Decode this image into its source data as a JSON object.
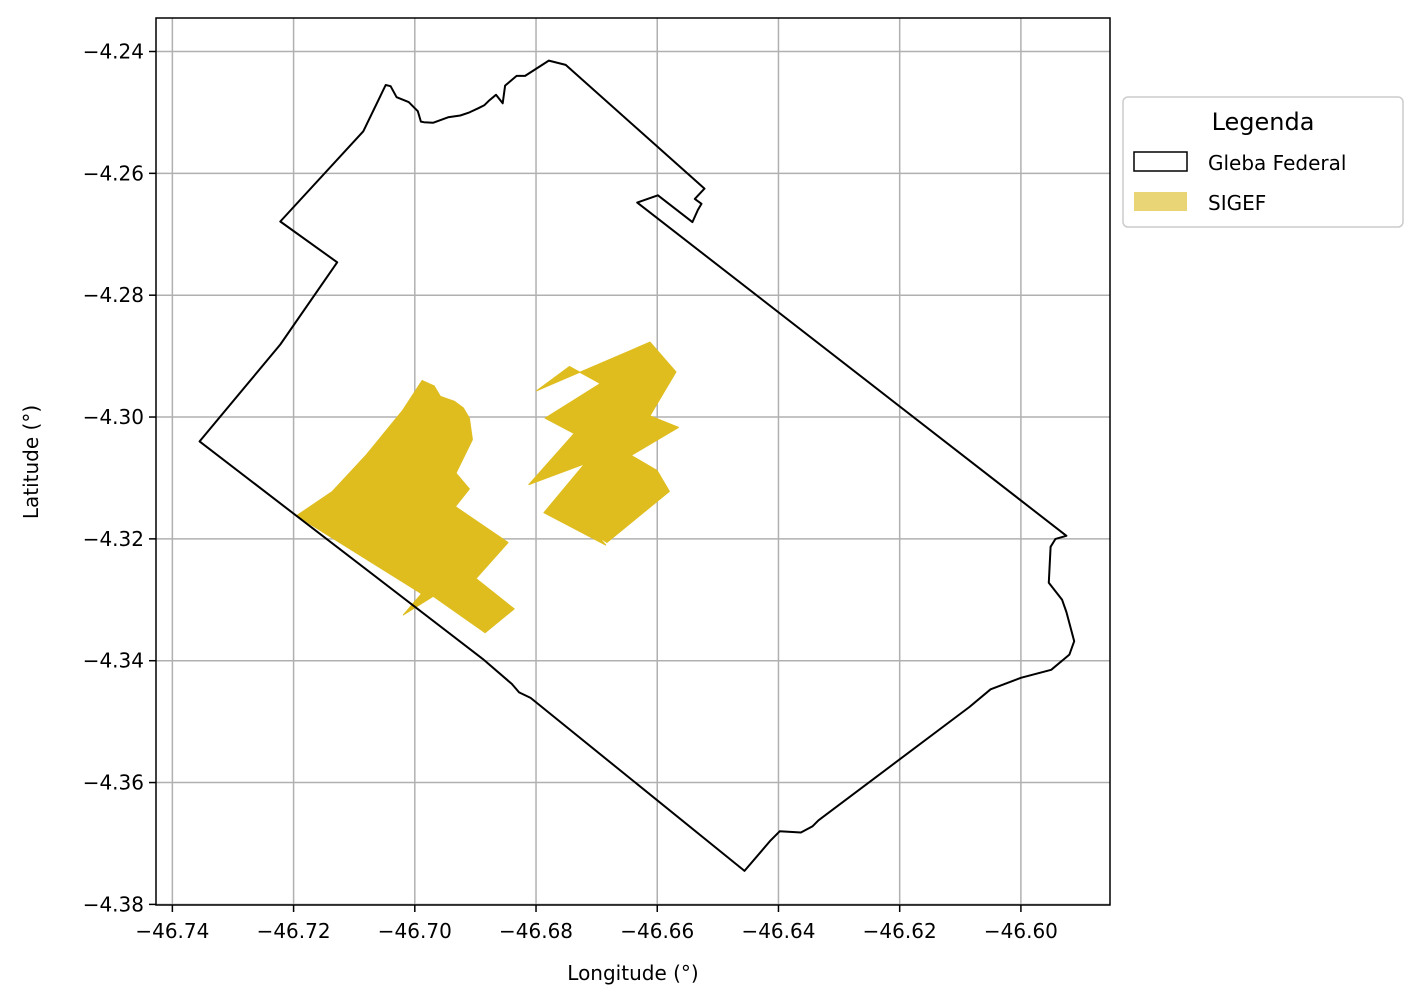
{
  "chart_data": {
    "type": "map",
    "xlabel": "Longitude (°)",
    "ylabel": "Latitude (°)",
    "xlim": [
      -46.7427,
      -46.5853
    ],
    "ylim": [
      -4.3801,
      -4.2345
    ],
    "xticks": [
      -46.74,
      -46.72,
      -46.7,
      -46.68,
      -46.66,
      -46.64,
      -46.62,
      -46.6
    ],
    "yticks": [
      -4.24,
      -4.26,
      -4.28,
      -4.3,
      -4.32,
      -4.34,
      -4.36,
      -4.38
    ],
    "xtick_labels": [
      "−46.74",
      "−46.72",
      "−46.70",
      "−46.68",
      "−46.66",
      "−46.64",
      "−46.62",
      "−46.60"
    ],
    "ytick_labels": [
      "−4.24",
      "−4.26",
      "−4.28",
      "−4.30",
      "−4.32",
      "−4.34",
      "−4.36",
      "−4.38"
    ],
    "grid": true,
    "legend": {
      "title": "Legenda",
      "placement": "outside-upper-right",
      "entries": [
        {
          "label": "Gleba Federal",
          "style": "outline",
          "color": "#000000"
        },
        {
          "label": "SIGEF",
          "style": "fill",
          "color": "#DFBD1F"
        }
      ]
    },
    "layers": [
      {
        "name": "Gleba Federal",
        "style": "outline",
        "stroke": "#000000",
        "polygons": [
          [
            [
              -46.7355,
              -4.304
            ],
            [
              -46.7222,
              -4.2881
            ],
            [
              -46.7128,
              -4.2746
            ],
            [
              -46.7222,
              -4.2679
            ],
            [
              -46.7085,
              -4.2531
            ],
            [
              -46.7048,
              -4.2455
            ],
            [
              -46.704,
              -4.2457
            ],
            [
              -46.703,
              -4.2475
            ],
            [
              -46.701,
              -4.2483
            ],
            [
              -46.6995,
              -4.2498
            ],
            [
              -46.699,
              -4.2515
            ],
            [
              -46.6985,
              -4.2516
            ],
            [
              -46.697,
              -4.2517
            ],
            [
              -46.6945,
              -4.2508
            ],
            [
              -46.6925,
              -4.2505
            ],
            [
              -46.691,
              -4.25
            ],
            [
              -46.6895,
              -4.2493
            ],
            [
              -46.6885,
              -4.2488
            ],
            [
              -46.6878,
              -4.2481
            ],
            [
              -46.6866,
              -4.2471
            ],
            [
              -46.6855,
              -4.2485
            ],
            [
              -46.6851,
              -4.2456
            ],
            [
              -46.6832,
              -4.244
            ],
            [
              -46.6818,
              -4.244
            ],
            [
              -46.6779,
              -4.2415
            ],
            [
              -46.6751,
              -4.2422
            ],
            [
              -46.6522,
              -4.2625
            ],
            [
              -46.6538,
              -4.2642
            ],
            [
              -46.6527,
              -4.265
            ],
            [
              -46.6533,
              -4.266
            ],
            [
              -46.6542,
              -4.268
            ],
            [
              -46.6599,
              -4.2636
            ],
            [
              -46.6633,
              -4.2648
            ],
            [
              -46.5925,
              -4.3195
            ],
            [
              -46.5943,
              -4.32
            ],
            [
              -46.5951,
              -4.3213
            ],
            [
              -46.5954,
              -4.3272
            ],
            [
              -46.5932,
              -4.33
            ],
            [
              -46.5925,
              -4.332
            ],
            [
              -46.5912,
              -4.3368
            ],
            [
              -46.592,
              -4.339
            ],
            [
              -46.595,
              -4.3415
            ],
            [
              -46.6,
              -4.3428
            ],
            [
              -46.605,
              -4.3447
            ],
            [
              -46.6085,
              -4.3476
            ],
            [
              -46.6334,
              -4.3662
            ],
            [
              -46.6344,
              -4.3672
            ],
            [
              -46.6363,
              -4.3682
            ],
            [
              -46.6398,
              -4.368
            ],
            [
              -46.6413,
              -4.3695
            ],
            [
              -46.6456,
              -4.3745
            ],
            [
              -46.6809,
              -4.3461
            ],
            [
              -46.6828,
              -4.3452
            ],
            [
              -46.684,
              -4.3438
            ],
            [
              -46.6888,
              -4.3397
            ],
            [
              -46.7355,
              -4.304
            ]
          ]
        ]
      },
      {
        "name": "SIGEF",
        "style": "fill",
        "fill": "#DFBD1F",
        "polygons": [
          [
            [
              -46.7195,
              -4.3162
            ],
            [
              -46.7136,
              -4.3122
            ],
            [
              -46.708,
              -4.3062
            ],
            [
              -46.702,
              -4.2989
            ],
            [
              -46.6988,
              -4.294
            ],
            [
              -46.6968,
              -4.2949
            ],
            [
              -46.6958,
              -4.2966
            ],
            [
              -46.6935,
              -4.2974
            ],
            [
              -46.692,
              -4.2985
            ],
            [
              -46.691,
              -4.3002
            ],
            [
              -46.6905,
              -4.3037
            ],
            [
              -46.6932,
              -4.3092
            ],
            [
              -46.691,
              -4.3118
            ],
            [
              -46.6933,
              -4.3147
            ],
            [
              -46.6846,
              -4.3206
            ],
            [
              -46.6899,
              -4.3265
            ],
            [
              -46.6836,
              -4.3315
            ],
            [
              -46.6884,
              -4.3354
            ],
            [
              -46.6977,
              -4.3289
            ],
            [
              -46.6953,
              -4.3284
            ],
            [
              -46.7019,
              -4.3325
            ],
            [
              -46.6989,
              -4.329
            ],
            [
              -46.7195,
              -4.3162
            ]
          ],
          [
            [
              -46.6812,
              -4.3111
            ],
            [
              -46.6737,
              -4.3027
            ],
            [
              -46.6785,
              -4.3002
            ],
            [
              -46.6694,
              -4.2945
            ],
            [
              -46.6745,
              -4.2917
            ],
            [
              -46.6799,
              -4.2957
            ],
            [
              -46.6612,
              -4.2877
            ],
            [
              -46.6569,
              -4.2926
            ],
            [
              -46.6612,
              -4.2998
            ],
            [
              -46.6565,
              -4.3017
            ],
            [
              -46.6643,
              -4.3063
            ],
            [
              -46.66,
              -4.3088
            ],
            [
              -46.658,
              -4.3122
            ],
            [
              -46.6683,
              -4.3206
            ],
            [
              -46.676,
              -4.3155
            ],
            [
              -46.6732,
              -4.316
            ],
            [
              -46.6702,
              -4.319
            ],
            [
              -46.6685,
              -4.321
            ],
            [
              -46.6787,
              -4.3157
            ],
            [
              -46.672,
              -4.3077
            ],
            [
              -46.6812,
              -4.3111
            ]
          ]
        ]
      }
    ]
  }
}
